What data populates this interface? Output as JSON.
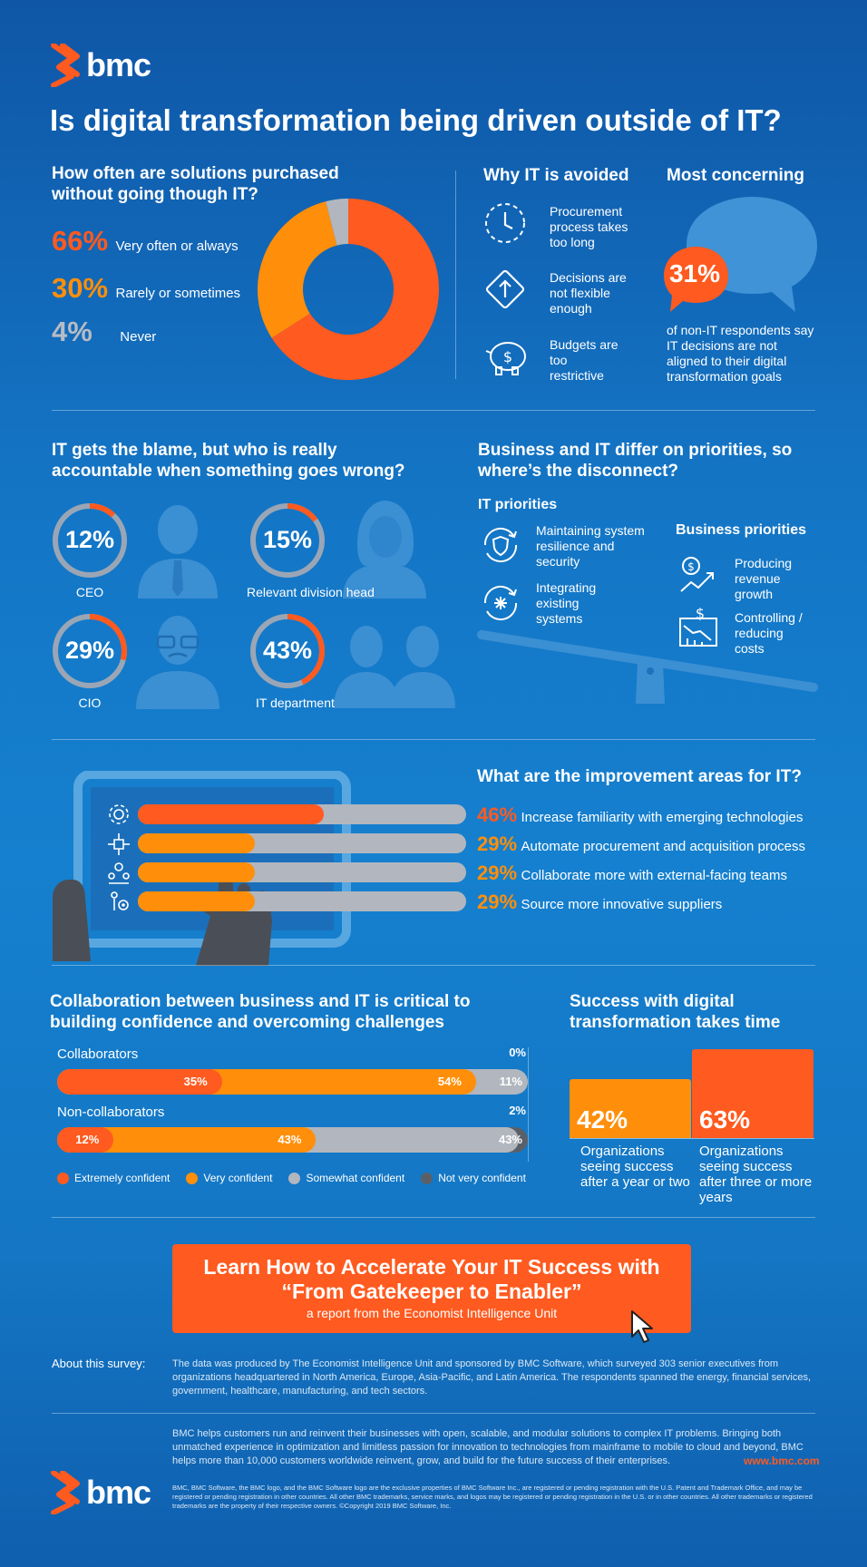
{
  "brand": "bmc",
  "title": "Is digital transformation being driven outside of IT?",
  "purchase": {
    "heading": "How often are solutions purchased without going though IT?",
    "items": [
      {
        "pct": "66%",
        "label": "Very often or always"
      },
      {
        "pct": "30%",
        "label": "Rarely or sometimes"
      },
      {
        "pct": "4%",
        "label": "Never"
      }
    ]
  },
  "why": {
    "heading": "Why IT is avoided",
    "items": [
      "Procurement process takes too long",
      "Decisions are not flexible enough",
      "Budgets are too restrictive"
    ]
  },
  "concern": {
    "heading": "Most concerning",
    "value": "31%",
    "text": "of non-IT respondents say IT decisions are not aligned to their digital transformation goals"
  },
  "blame": {
    "heading": "IT gets the blame, but who is really accountable when something goes wrong?",
    "items": [
      {
        "pct": "12%",
        "label": "CEO"
      },
      {
        "pct": "15%",
        "label": "Relevant division head"
      },
      {
        "pct": "29%",
        "label": "CIO"
      },
      {
        "pct": "43%",
        "label": "IT department"
      }
    ]
  },
  "priorities": {
    "heading": "Business and IT differ on priorities, so where’s the disconnect?",
    "it_heading": "IT priorities",
    "it_items": [
      "Maintaining system resilience and security",
      "Integrating existing systems"
    ],
    "biz_heading": "Business priorities",
    "biz_items": [
      "Producing revenue growth",
      "Controlling / reducing costs"
    ]
  },
  "improve": {
    "heading": "What are the improvement areas for IT?",
    "items": [
      {
        "pct": "46%",
        "label": "Increase familiarity with emerging technologies"
      },
      {
        "pct": "29%",
        "label": "Automate procurement and acquisition process"
      },
      {
        "pct": "29%",
        "label": "Collaborate more with external-facing teams"
      },
      {
        "pct": "29%",
        "label": "Source more innovative suppliers"
      }
    ]
  },
  "collab": {
    "heading": "Collaboration between business and IT is critical to building confidence and overcoming challenges",
    "legend": [
      "Extremely confident",
      "Very confident",
      "Somewhat confident",
      "Not very confident"
    ]
  },
  "success": {
    "heading": "Success with digital transformation takes time",
    "items": [
      {
        "pct": "42%",
        "label": "Organizations seeing success after a year or two"
      },
      {
        "pct": "63%",
        "label": "Organizations seeing success after three or more years"
      }
    ]
  },
  "cta": {
    "line1": "Learn How to Accelerate Your IT Success with",
    "line2": "“From Gatekeeper to Enabler”",
    "line3": "a report from the Economist Intelligence Unit"
  },
  "about": {
    "label": "About this survey:",
    "text": "The data was produced by The Economist Intelligence Unit and sponsored by BMC Software, which surveyed 303 senior executives from organizations headquartered in North America, Europe, Asia-Pacific, and Latin America. The respondents spanned the energy, financial services, government, healthcare, manufacturing, and tech sectors."
  },
  "footer": {
    "blurb": "BMC helps customers run and reinvent their businesses with open, scalable, and modular solutions to complex IT problems. Bringing both unmatched experience in optimization and limitless passion for innovation to technologies from mainframe to mobile to cloud and beyond, BMC helps more than 10,000 customers worldwide reinvent, grow, and build for the future success of their enterprises.",
    "url": "www.bmc.com",
    "legal": "BMC, BMC Software, the BMC logo, and the BMC Software logo are the exclusive properties of BMC Software Inc., are registered or pending registration with the U.S. Patent and Trademark Office, and may be registered or pending registration in other countries. All other BMC trademarks, service marks, and logos may be registered or pending registration in the U.S. or in other countries. All other trademarks or registered trademarks are the property of their respective owners. ©Copyright 2019 BMC Software, Inc."
  },
  "colors": {
    "extreme": "#ff5a1f",
    "very": "#ff8f0a",
    "somewhat": "#b2b6be",
    "not_very": "#5b6068",
    "ring_track": "#9aa6b5"
  },
  "chart_data": [
    {
      "type": "pie",
      "title": "How often are solutions purchased without going though IT?",
      "categories": [
        "Very often or always",
        "Rarely or sometimes",
        "Never"
      ],
      "values": [
        66,
        30,
        4
      ]
    },
    {
      "type": "pie",
      "title": "IT gets the blame, but who is really accountable when something goes wrong?",
      "categories": [
        "CEO",
        "Relevant division head",
        "CIO",
        "IT department"
      ],
      "values": [
        12,
        15,
        29,
        43
      ]
    },
    {
      "type": "bar",
      "title": "What are the improvement areas for IT?",
      "categories": [
        "Increase familiarity with emerging technologies",
        "Automate procurement and acquisition process",
        "Collaborate more with external-facing teams",
        "Source more innovative suppliers"
      ],
      "values": [
        46,
        29,
        29,
        29
      ],
      "ylim": [
        0,
        100
      ]
    },
    {
      "type": "bar",
      "title": "Collaboration between business and IT is critical to building confidence and overcoming challenges",
      "categories": [
        "Collaborators",
        "Non-collaborators"
      ],
      "series": [
        {
          "name": "Extremely confident",
          "values": [
            35,
            12
          ]
        },
        {
          "name": "Very confident",
          "values": [
            54,
            43
          ]
        },
        {
          "name": "Somewhat confident",
          "values": [
            11,
            43
          ]
        },
        {
          "name": "Not very confident",
          "values": [
            0,
            2
          ]
        }
      ],
      "ylim": [
        0,
        100
      ]
    },
    {
      "type": "bar",
      "title": "Success with digital transformation takes time",
      "categories": [
        "Organizations seeing success after a year or two",
        "Organizations seeing success after three or more years"
      ],
      "values": [
        42,
        63
      ]
    }
  ]
}
